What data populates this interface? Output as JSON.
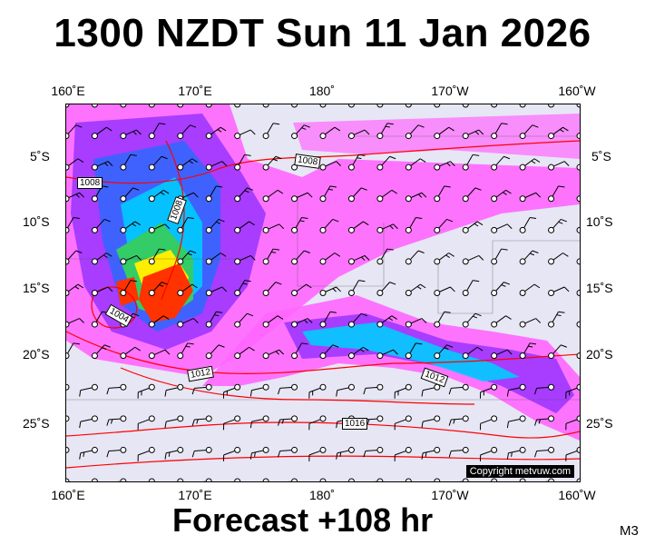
{
  "title": "1300 NZDT Sun 11 Jan 2026",
  "footer": "Forecast +108 hr",
  "code": "M3",
  "copyright": "Copyright metvuw.com",
  "lon_labels": [
    "160˚E",
    "170˚E",
    "180˚",
    "170˚W",
    "160˚W"
  ],
  "lat_labels": [
    "5˚S",
    "10˚S",
    "15˚S",
    "20˚S",
    "25˚S"
  ],
  "isobar_labels": [
    "1008",
    "1008",
    "1008",
    "1004",
    "1012",
    "1012",
    "1016"
  ],
  "colors": {
    "background": "#e6e6f5",
    "isobar": "#ff0000",
    "precip_light": "#ff66ff",
    "precip_mid": "#9933ff",
    "precip_heavy": "#00ccff",
    "precip_max": "#ff3300"
  }
}
